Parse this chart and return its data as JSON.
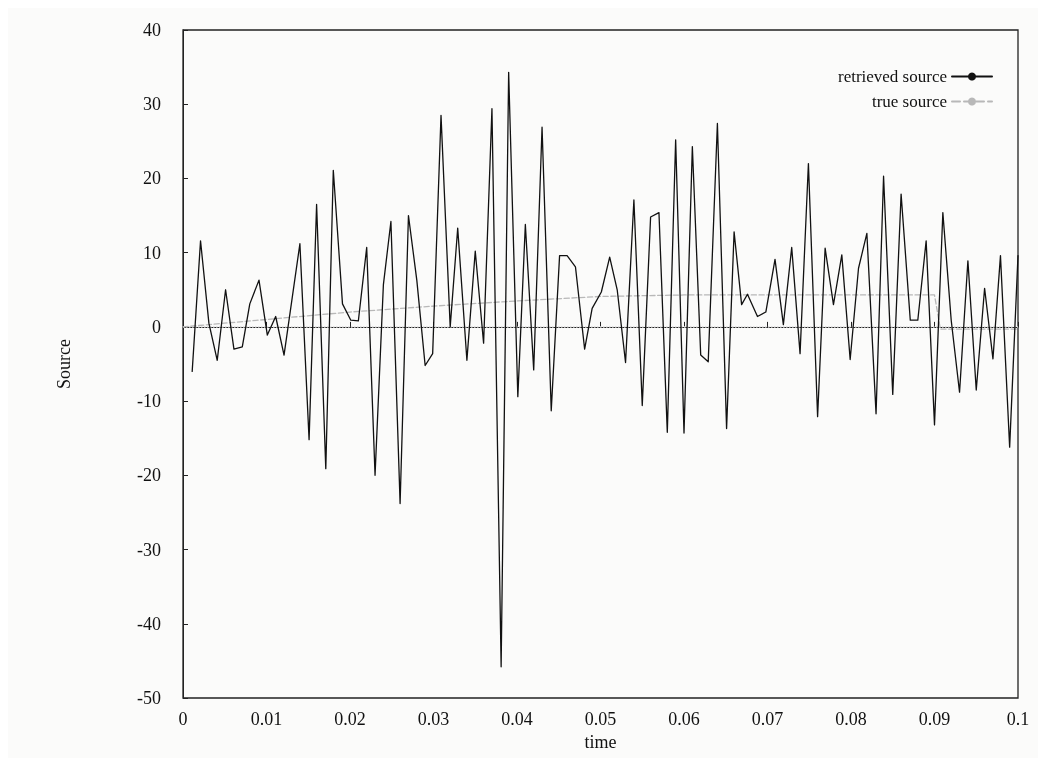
{
  "chart_data": {
    "type": "line",
    "xlabel": "time",
    "ylabel": "Source",
    "xlim": [
      0,
      0.1
    ],
    "ylim": [
      -50,
      40
    ],
    "xticks": [
      0,
      0.01,
      0.02,
      0.03,
      0.04,
      0.05,
      0.06,
      0.07,
      0.08,
      0.09,
      0.1
    ],
    "yticks": [
      -50,
      -40,
      -30,
      -20,
      -10,
      0,
      10,
      20,
      30,
      40
    ],
    "grid": false,
    "legend": "top right",
    "marker": "none",
    "ref_lines": [
      {
        "axis": "y",
        "value": 0,
        "color": "#d8d8d8",
        "line_style": "dotted"
      }
    ],
    "series": [
      {
        "name": "retrieved source",
        "color": "#111111",
        "line_style": "solid",
        "x": [
          0.0011,
          0.0021,
          0.0031,
          0.0041,
          0.0051,
          0.0061,
          0.0071,
          0.008,
          0.0091,
          0.0101,
          0.0111,
          0.0121,
          0.014,
          0.0151,
          0.016,
          0.0171,
          0.018,
          0.0191,
          0.0201,
          0.021,
          0.022,
          0.023,
          0.024,
          0.0249,
          0.026,
          0.027,
          0.028,
          0.029,
          0.0299,
          0.0309,
          0.032,
          0.0329,
          0.034,
          0.035,
          0.036,
          0.037,
          0.0381,
          0.039,
          0.0401,
          0.041,
          0.042,
          0.043,
          0.0441,
          0.0451,
          0.046,
          0.047,
          0.0481,
          0.049,
          0.0501,
          0.0511,
          0.052,
          0.053,
          0.054,
          0.055,
          0.056,
          0.057,
          0.058,
          0.059,
          0.06,
          0.061,
          0.062,
          0.0629,
          0.064,
          0.0651,
          0.066,
          0.0669,
          0.0676,
          0.0688,
          0.0698,
          0.0709,
          0.0719,
          0.0729,
          0.0739,
          0.0749,
          0.076,
          0.0769,
          0.0779,
          0.0789,
          0.0799,
          0.0809,
          0.0819,
          0.083,
          0.0839,
          0.085,
          0.086,
          0.0871,
          0.088,
          0.089,
          0.09,
          0.091,
          0.092,
          0.093,
          0.094,
          0.095,
          0.096,
          0.097,
          0.0979,
          0.099,
          0.1
        ],
        "values": [
          -6,
          11.6,
          0.5,
          -4.5,
          5,
          -3,
          -2.7,
          3.1,
          6.3,
          -1.1,
          1.4,
          -3.8,
          11.2,
          -15.2,
          16.5,
          -19.1,
          21.1,
          3.1,
          0.9,
          0.8,
          10.7,
          -20,
          5.7,
          14.2,
          -23.8,
          15,
          6.3,
          -5.2,
          -3.6,
          28.5,
          0,
          13.3,
          -4.5,
          10.2,
          -2.2,
          29.4,
          -45.8,
          34.3,
          -9.4,
          13.8,
          -5.8,
          26.9,
          -11.3,
          9.6,
          9.6,
          8.1,
          -3,
          2.5,
          4.7,
          9.4,
          5,
          -4.8,
          17.1,
          -10.6,
          14.8,
          15.4,
          -14.2,
          25.2,
          -14.3,
          24.3,
          -3.8,
          -4.7,
          27.4,
          -13.7,
          12.8,
          3,
          4.4,
          1.4,
          2,
          9.1,
          0.3,
          10.7,
          -3.6,
          22,
          -12.1,
          10.6,
          3,
          9.7,
          -4.4,
          7.9,
          12.6,
          -11.7,
          20.3,
          -9.1,
          17.9,
          0.9,
          0.9,
          11.6,
          -13.2,
          15.4,
          0.9,
          -8.8,
          8.9,
          -8.5,
          5.2,
          -4.3,
          9.6,
          -16.2,
          9.6
        ]
      },
      {
        "name": "true source",
        "color": "#b8b8b8",
        "line_style": "dashed",
        "x": [
          0,
          0.01,
          0.02,
          0.03,
          0.04,
          0.05,
          0.06,
          0.09,
          0.0907,
          0.1
        ],
        "values": [
          0,
          1,
          2,
          2.8,
          3.5,
          4.1,
          4.3,
          4.3,
          -0.3,
          -0.3
        ]
      }
    ]
  }
}
